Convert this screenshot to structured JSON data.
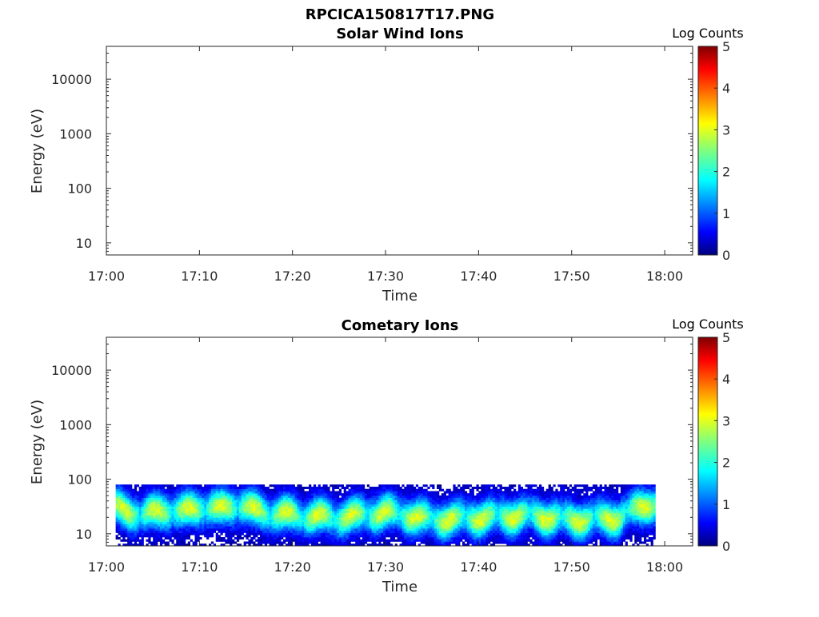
{
  "figure_title": "RPCICA150817T17.PNG",
  "colors": {
    "jet": [
      "#00007f",
      "#0000ff",
      "#007fff",
      "#00ffff",
      "#7fff7f",
      "#ffff00",
      "#ff7f00",
      "#ff0000",
      "#7f0000"
    ]
  },
  "chart_data": [
    {
      "type": "heatmap",
      "title": "Solar Wind Ions",
      "xlabel": "Time",
      "ylabel": "Energy (eV)",
      "x_ticks": [
        "17:00",
        "17:10",
        "17:20",
        "17:30",
        "17:40",
        "17:50",
        "18:00"
      ],
      "y_ticks": [
        "10",
        "100",
        "1000",
        "10000"
      ],
      "y_scale": "log",
      "ylim": [
        6,
        40000
      ],
      "xlim": [
        "17:00",
        "18:03"
      ],
      "colorbar": {
        "label": "Log Counts",
        "ticks": [
          "0",
          "1",
          "2",
          "3",
          "4",
          "5"
        ],
        "range": [
          0,
          5
        ]
      },
      "grid": false,
      "data": []
    },
    {
      "type": "heatmap",
      "title": "Cometary Ions",
      "xlabel": "Time",
      "ylabel": "Energy (eV)",
      "x_ticks": [
        "17:00",
        "17:10",
        "17:20",
        "17:30",
        "17:40",
        "17:50",
        "18:00"
      ],
      "y_ticks": [
        "10",
        "100",
        "1000",
        "10000"
      ],
      "y_scale": "log",
      "ylim": [
        6,
        40000
      ],
      "xlim": [
        "17:00",
        "18:03"
      ],
      "colorbar": {
        "label": "Log Counts",
        "ticks": [
          "0",
          "1",
          "2",
          "3",
          "4",
          "5"
        ],
        "range": [
          0,
          5
        ]
      },
      "grid": false,
      "data_time_range": [
        "17:01",
        "17:59"
      ],
      "energy_range_eV": [
        6,
        80
      ],
      "peak_energy_eV": [
        [
          "17:01",
          30
        ],
        [
          "17:04",
          22
        ],
        [
          "17:06",
          28
        ],
        [
          "17:08",
          25
        ],
        [
          "17:10",
          32
        ],
        [
          "17:12",
          28
        ],
        [
          "17:14",
          35
        ],
        [
          "17:16",
          26
        ],
        [
          "17:20",
          22
        ],
        [
          "17:25",
          20
        ],
        [
          "17:30",
          25
        ],
        [
          "17:35",
          18
        ],
        [
          "17:40",
          20
        ],
        [
          "17:45",
          22
        ],
        [
          "17:50",
          18
        ],
        [
          "17:55",
          20
        ],
        [
          "17:58",
          35
        ]
      ],
      "peak_log_counts_max": 2.8
    }
  ]
}
